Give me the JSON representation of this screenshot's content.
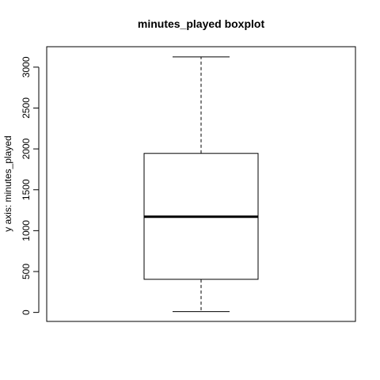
{
  "chart_data": {
    "type": "boxplot",
    "title": "minutes_played boxplot",
    "xlabel": "",
    "ylabel": "y axis: minutes_played",
    "ylim": [
      -110,
      3250
    ],
    "yticks": [
      0,
      500,
      1000,
      1500,
      2000,
      2500,
      3000
    ],
    "ytick_labels": [
      "0",
      "500",
      "1000",
      "1500",
      "2000",
      "2500",
      "3000"
    ],
    "box": {
      "min": 10,
      "q1": 405,
      "median": 1170,
      "q3": 1945,
      "max": 3125
    },
    "colors": {
      "box_fill": "#ffffff",
      "stroke": "#000000"
    }
  }
}
